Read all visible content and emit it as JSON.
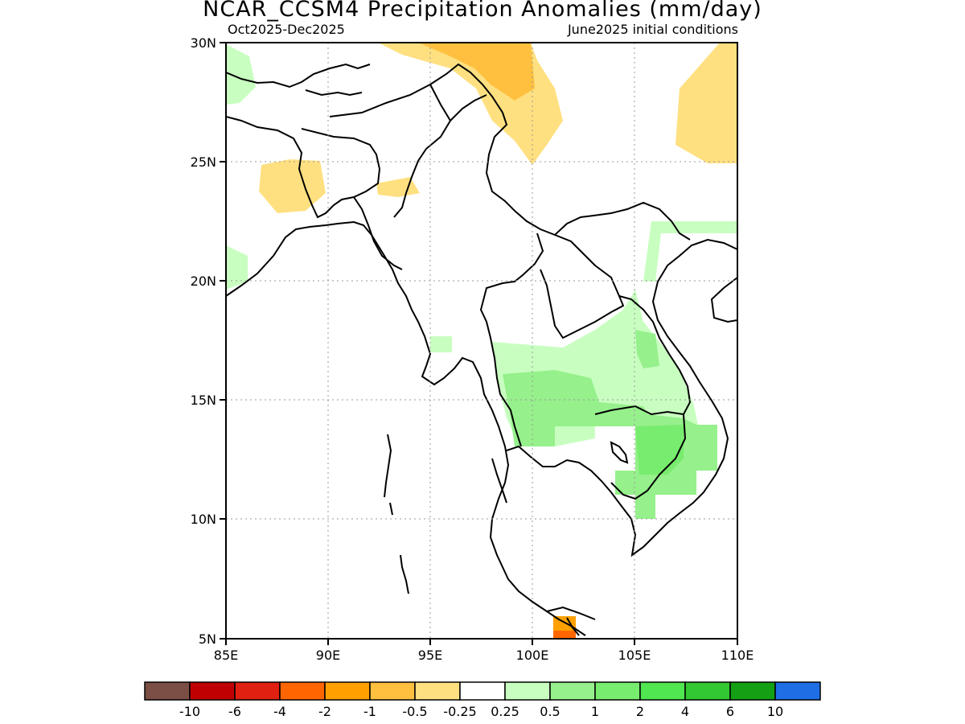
{
  "title": "NCAR_CCSM4 Precipitation Anomalies (mm/day)",
  "subtitle_left": "Oct2025-Dec2025",
  "subtitle_right": "June2025 initial conditions",
  "map": {
    "lon_range": [
      85,
      110
    ],
    "lat_range": [
      5,
      30
    ],
    "x_ticks": [
      "85E",
      "90E",
      "95E",
      "100E",
      "105E",
      "110E"
    ],
    "y_ticks": [
      "30N",
      "25N",
      "20N",
      "15N",
      "10N",
      "5N"
    ],
    "grid": "dotted"
  },
  "colorbar": {
    "colors": [
      "#7b4f45",
      "#c00000",
      "#e02010",
      "#ff6600",
      "#ffa000",
      "#ffc040",
      "#ffe080",
      "#ffffff",
      "#c8ffc0",
      "#96f08c",
      "#78ec6e",
      "#50e650",
      "#32c832",
      "#14a014",
      "#1e6ee6"
    ],
    "labels": [
      "-10",
      "-6",
      "-4",
      "-2",
      "-1",
      "-0.5",
      "-0.25",
      "0.25",
      "0.5",
      "1",
      "2",
      "4",
      "6",
      "10"
    ]
  }
}
